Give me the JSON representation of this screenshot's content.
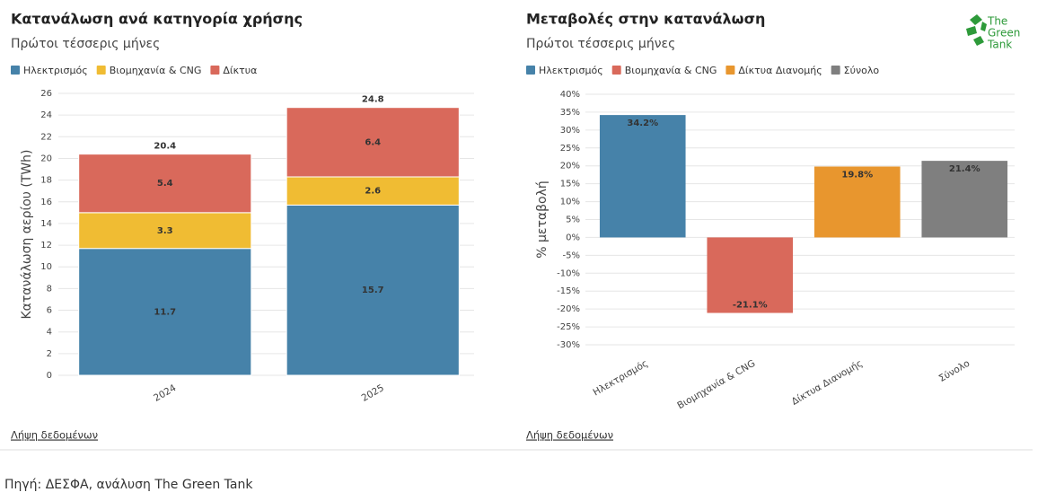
{
  "chart_data": [
    {
      "type": "bar",
      "stacked": true,
      "title": "Κατανάλωση ανά κατηγορία χρήσης",
      "subtitle": "Πρώτοι τέσσερις μήνες",
      "y_label": "Κατανάλωση αερίου (TWh)",
      "categories": [
        "2024",
        "2025"
      ],
      "series": [
        {
          "name": "Ηλεκτρισμός",
          "color": "#4682a9",
          "values": [
            11.7,
            15.7
          ]
        },
        {
          "name": "Βιομηχανία & CNG",
          "color": "#f0bc33",
          "values": [
            3.3,
            2.6
          ]
        },
        {
          "name": "Δίκτυα",
          "color": "#d9695b",
          "values": [
            5.4,
            6.4
          ]
        }
      ],
      "totals": [
        20.4,
        24.8
      ],
      "ylim": [
        0,
        26
      ],
      "yticks": [
        0,
        2,
        4,
        6,
        8,
        10,
        12,
        14,
        16,
        18,
        20,
        22,
        24,
        26
      ],
      "grid": true
    },
    {
      "type": "bar",
      "title": "Μεταβολές στην κατανάλωση",
      "subtitle": "Πρώτοι τέσσερις μήνες",
      "y_label": "% μεταβολή",
      "categories": [
        "Ηλεκτρισμός",
        "Βιομηχανία & CNG",
        "Δίκτυα Διανομής",
        "Σύνολο"
      ],
      "values": [
        34.2,
        -21.1,
        19.8,
        21.4
      ],
      "value_labels": [
        "34.2%",
        "-21.1%",
        "19.8%",
        "21.4%"
      ],
      "colors": [
        "#4682a9",
        "#d9695b",
        "#e8962e",
        "#7f7f7f"
      ],
      "ylim": [
        -30,
        40
      ],
      "yticks": [
        {
          "value": -30,
          "label": "-30%"
        },
        {
          "value": -25,
          "label": "-25%"
        },
        {
          "value": -20,
          "label": "-20%"
        },
        {
          "value": -15,
          "label": "-15%"
        },
        {
          "value": -10,
          "label": "-10%"
        },
        {
          "value": -5,
          "label": "-5%"
        },
        {
          "value": 0,
          "label": "0%"
        },
        {
          "value": 5,
          "label": "5%"
        },
        {
          "value": 10,
          "label": "10%"
        },
        {
          "value": 15,
          "label": "15%"
        },
        {
          "value": 20,
          "label": "20%"
        },
        {
          "value": 25,
          "label": "25%"
        },
        {
          "value": 30,
          "label": "30%"
        },
        {
          "value": 35,
          "label": "35%"
        },
        {
          "value": 40,
          "label": "40%"
        }
      ],
      "grid": true
    }
  ],
  "links": [
    "Λήψη δεδομένων",
    "Λήψη δεδομένων"
  ],
  "source": "Πηγή: ΔΕΣΦΑ, ανάλυση The Green Tank",
  "logo": [
    "The",
    "Green",
    "Tank"
  ]
}
